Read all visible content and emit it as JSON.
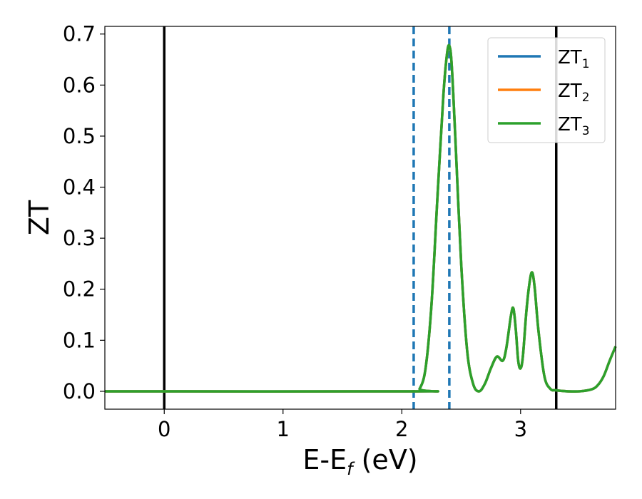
{
  "chart_data": {
    "type": "line",
    "xlabel_main": "E-E",
    "xlabel_sub": "f",
    "xlabel_unit": " (eV)",
    "ylabel": "ZT",
    "xlim": [
      -0.5,
      3.8
    ],
    "ylim": [
      -0.035,
      0.715
    ],
    "xticks": [
      0,
      1,
      2,
      3
    ],
    "xtick_labels": [
      "0",
      "1",
      "2",
      "3"
    ],
    "yticks": [
      0.0,
      0.1,
      0.2,
      0.3,
      0.4,
      0.5,
      0.6,
      0.7
    ],
    "ytick_labels": [
      "0.0",
      "0.1",
      "0.2",
      "0.3",
      "0.4",
      "0.5",
      "0.6",
      "0.7"
    ],
    "grid": false,
    "legend_position": "top-right",
    "vertical_lines": [
      {
        "x": 0.0,
        "style": "solid",
        "color": "#000000"
      },
      {
        "x": 3.3,
        "style": "solid",
        "color": "#000000"
      },
      {
        "x": 2.1,
        "style": "dashed",
        "color": "#1f77b4"
      },
      {
        "x": 2.4,
        "style": "dashed",
        "color": "#1f77b4"
      }
    ],
    "x": [
      -0.5,
      2.1,
      2.15,
      2.2,
      2.25,
      2.3,
      2.35,
      2.38,
      2.4,
      2.42,
      2.45,
      2.5,
      2.55,
      2.6,
      2.65,
      2.7,
      2.75,
      2.8,
      2.85,
      2.88,
      2.92,
      2.94,
      2.96,
      2.98,
      3.0,
      3.02,
      3.05,
      3.08,
      3.1,
      3.12,
      3.15,
      3.2,
      3.25,
      3.3,
      3.4,
      3.5,
      3.6,
      3.65,
      3.7,
      3.75,
      3.8
    ],
    "series": [
      {
        "name": "ZT",
        "sub": "1",
        "color": "#1f77b4",
        "values": [
          0.0,
          0.0,
          0.005,
          0.045,
          0.17,
          0.38,
          0.58,
          0.66,
          0.677,
          0.64,
          0.5,
          0.25,
          0.08,
          0.015,
          0.0,
          0.015,
          0.045,
          0.068,
          0.06,
          0.085,
          0.15,
          0.162,
          0.12,
          0.06,
          0.045,
          0.07,
          0.16,
          0.22,
          0.232,
          0.2,
          0.12,
          0.03,
          0.005,
          0.002,
          0.0,
          0.0,
          0.004,
          0.012,
          0.03,
          0.06,
          0.088
        ]
      },
      {
        "name": "ZT",
        "sub": "2",
        "color": "#ff7f0e",
        "values": [
          0.0,
          0.0,
          0.005,
          0.045,
          0.17,
          0.38,
          0.58,
          0.66,
          0.677,
          0.64,
          0.5,
          0.25,
          0.08,
          0.015,
          0.0,
          0.015,
          0.045,
          0.068,
          0.06,
          0.085,
          0.15,
          0.162,
          0.12,
          0.06,
          0.045,
          0.07,
          0.16,
          0.22,
          0.232,
          0.2,
          0.12,
          0.03,
          0.005,
          0.002,
          0.0,
          0.0,
          0.004,
          0.012,
          0.03,
          0.06,
          0.088
        ]
      },
      {
        "name": "ZT",
        "sub": "3",
        "color": "#2ca02c",
        "values": [
          0.0,
          0.0,
          0.005,
          0.045,
          0.17,
          0.38,
          0.58,
          0.66,
          0.677,
          0.64,
          0.5,
          0.25,
          0.08,
          0.015,
          0.0,
          0.015,
          0.045,
          0.068,
          0.06,
          0.085,
          0.15,
          0.162,
          0.12,
          0.06,
          0.045,
          0.07,
          0.16,
          0.22,
          0.232,
          0.2,
          0.12,
          0.03,
          0.005,
          0.002,
          0.0,
          0.0,
          0.004,
          0.012,
          0.03,
          0.06,
          0.088
        ]
      }
    ]
  }
}
